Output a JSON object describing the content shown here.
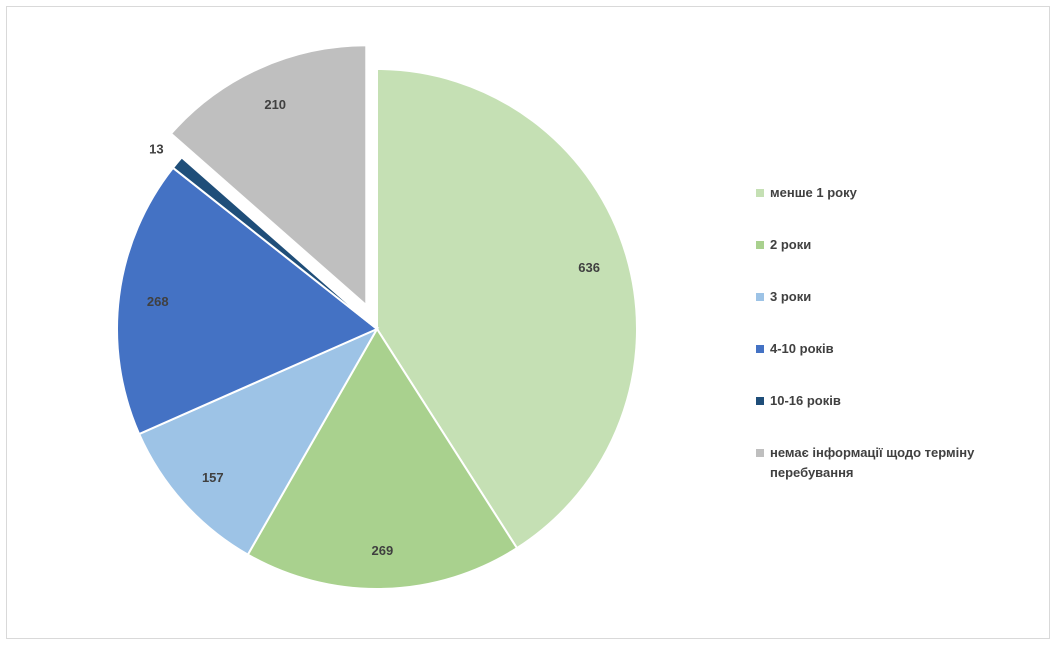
{
  "chart_data": {
    "type": "pie",
    "exploded": true,
    "legend_position": "right",
    "slices": [
      {
        "label": "менше 1 року",
        "value": 636,
        "color": "#c5e0b4"
      },
      {
        "label": "2 роки",
        "value": 269,
        "color": "#a9d18e"
      },
      {
        "label": "3 роки",
        "value": 157,
        "color": "#9dc3e6"
      },
      {
        "label": "4-10 років",
        "value": 268,
        "color": "#4472c4"
      },
      {
        "label": "10-16 років",
        "value": 13,
        "color": "#1f4e79"
      },
      {
        "label": "немає інформації щодо терміну перебування",
        "value": 210,
        "color": "#bfbfbf"
      }
    ]
  }
}
